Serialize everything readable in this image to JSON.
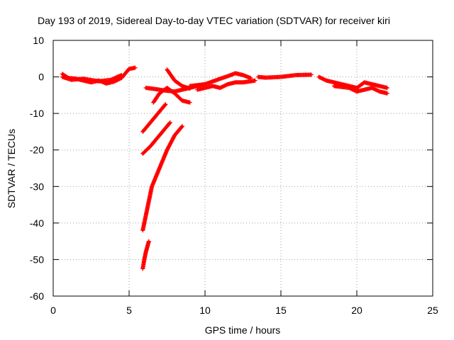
{
  "chart_data": {
    "type": "scatter",
    "title": "Day 193 of 2019, Sidereal Day-to-day VTEC variation (SDTVAR) for receiver kiri",
    "xlabel": "GPS time / hours",
    "ylabel": "SDTVAR / TECUs",
    "xlim": [
      0,
      25
    ],
    "ylim": [
      -60,
      10
    ],
    "xticks": [
      "0",
      "5",
      "10",
      "15",
      "20",
      "25"
    ],
    "yticks": [
      "10",
      "0",
      "-10",
      "-20",
      "-30",
      "-40",
      "-50",
      "-60"
    ],
    "grid": true,
    "marker": "plus",
    "series_color": "#ff0000",
    "series": [
      {
        "segments": [
          {
            "x": [
              0.6,
              1.0,
              1.5,
              2.0,
              2.5,
              3.0,
              3.5,
              4.0,
              4.5,
              5.0,
              5.4
            ],
            "y": [
              0.8,
              -0.3,
              -0.5,
              -1.0,
              -1.5,
              -1.0,
              -1.8,
              -1.3,
              -0.3,
              2.2,
              2.5
            ]
          },
          {
            "x": [
              0.6,
              1.2,
              2.0,
              3.0,
              3.8,
              4.5
            ],
            "y": [
              0.0,
              -0.8,
              -0.5,
              -1.2,
              -0.8,
              0.5
            ]
          },
          {
            "x": [
              6.1,
              6.5,
              7.0,
              7.5,
              8.0,
              8.5,
              9.0,
              9.5,
              10.0
            ],
            "y": [
              -3.0,
              -3.2,
              -3.5,
              -3.8,
              -4.0,
              -3.5,
              -3.0,
              -2.5,
              -2.0
            ]
          },
          {
            "x": [
              7.5,
              8.0,
              8.5,
              9.0
            ],
            "y": [
              2.0,
              -1.0,
              -2.5,
              -3.2
            ]
          },
          {
            "x": [
              6.6,
              7.0,
              7.5,
              8.0,
              8.5,
              9.0
            ],
            "y": [
              -7.0,
              -4.5,
              -3.0,
              -4.5,
              -6.5,
              -7.0
            ]
          },
          {
            "x": [
              9.0,
              10.0,
              11.0,
              11.5,
              12.0,
              12.5,
              13.0
            ],
            "y": [
              -2.5,
              -2.0,
              -0.5,
              0.2,
              1.0,
              0.5,
              -0.3
            ]
          },
          {
            "x": [
              9.5,
              10.0,
              10.5,
              11.0,
              11.5,
              12.0,
              12.5,
              13.0,
              13.3
            ],
            "y": [
              -3.5,
              -3.0,
              -2.5,
              -3.0,
              -2.0,
              -1.5,
              -1.5,
              -1.2,
              -1.0
            ]
          },
          {
            "x": [
              13.5,
              14.0,
              15.0,
              16.0,
              17.0
            ],
            "y": [
              0.0,
              -0.2,
              0.0,
              0.5,
              0.6
            ]
          },
          {
            "x": [
              17.5,
              18.0,
              18.5,
              19.0,
              19.5,
              20.0,
              20.5,
              21.0,
              21.5,
              22.0
            ],
            "y": [
              0.0,
              -1.0,
              -1.5,
              -2.0,
              -2.5,
              -3.0,
              -1.5,
              -2.0,
              -2.5,
              -3.0
            ]
          },
          {
            "x": [
              18.5,
              19.5,
              20.0,
              20.5,
              21.0,
              21.5,
              22.0
            ],
            "y": [
              -2.5,
              -3.0,
              -4.0,
              -3.5,
              -3.0,
              -4.0,
              -4.5
            ]
          },
          {
            "x": [
              5.9,
              6.3,
              6.8,
              7.2,
              7.4
            ],
            "y": [
              -15.0,
              -13.0,
              -10.5,
              -8.5,
              -7.5
            ]
          },
          {
            "x": [
              5.9,
              6.4,
              7.0,
              7.5,
              7.7
            ],
            "y": [
              -21.0,
              -19.0,
              -16.0,
              -13.5,
              -12.5
            ]
          },
          {
            "x": [
              5.9,
              6.2,
              6.5,
              7.0,
              7.5,
              8.0,
              8.5
            ],
            "y": [
              -42.0,
              -36.0,
              -30.0,
              -25.0,
              -20.0,
              -16.0,
              -13.5
            ]
          },
          {
            "x": [
              5.9,
              6.0,
              6.1,
              6.2,
              6.3
            ],
            "y": [
              -52.5,
              -50.0,
              -48.0,
              -46.5,
              -45.0
            ]
          }
        ]
      }
    ]
  }
}
